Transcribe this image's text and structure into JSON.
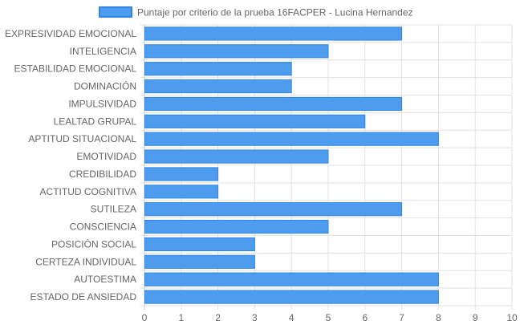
{
  "chart_data": {
    "type": "bar",
    "orientation": "horizontal",
    "categories": [
      "EXPRESIVIDAD EMOCIONAL",
      "INTELIGENCIA",
      "ESTABILIDAD EMOCIONAL",
      "DOMINACIÓN",
      "IMPULSIVIDAD",
      "LEALTAD GRUPAL",
      "APTITUD SITUACIONAL",
      "EMOTIVIDAD",
      "CREDIBILIDAD",
      "ACTITUD COGNITIVA",
      "SUTILEZA",
      "CONSCIENCIA",
      "POSICIÓN SOCIAL",
      "CERTEZA INDIVIDUAL",
      "AUTOESTIMA",
      "ESTADO DE ANSIEDAD"
    ],
    "series": [
      {
        "name": "Puntaje por criterio de la prueba 16FACPER - Lucina Hernandez",
        "values": [
          7,
          5,
          4,
          4,
          7,
          6,
          8,
          5,
          2,
          2,
          7,
          5,
          3,
          3,
          8,
          8
        ],
        "color": "#4d9ced",
        "border_color": "#2f86e6"
      }
    ],
    "xlim": [
      0,
      10
    ],
    "xticks": [
      "0",
      "1",
      "2",
      "3",
      "4",
      "5",
      "6",
      "7",
      "8",
      "9",
      "10"
    ],
    "grid": true,
    "legend_position": "top-center"
  },
  "colors": {
    "grid": "#e3e3e3",
    "axis_text": "#666666"
  }
}
